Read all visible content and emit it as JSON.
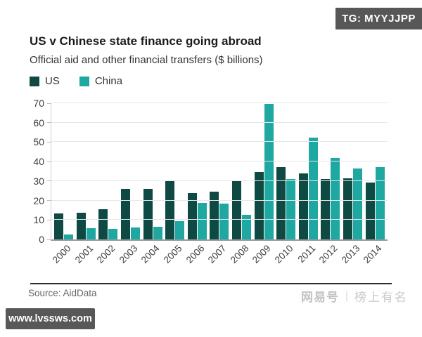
{
  "badges": {
    "tg": "TG: MYYJJPP",
    "site": "www.lvssws.com"
  },
  "watermark": {
    "brand": "网易号",
    "separator": "|",
    "tagline": "榜上有名"
  },
  "chart_data": {
    "type": "bar",
    "title": "US v Chinese state finance going abroad",
    "subtitle": "Official aid and other financial transfers ($ billions)",
    "source": "Source: AidData",
    "xlabel": "",
    "ylabel": "",
    "categories": [
      "2000",
      "2001",
      "2002",
      "2003",
      "2004",
      "2005",
      "2006",
      "2007",
      "2008",
      "2009",
      "2010",
      "2011",
      "2012",
      "2013",
      "2014"
    ],
    "series": [
      {
        "name": "US",
        "color": "#0f4944",
        "values": [
          13.4,
          13.7,
          15.5,
          25.9,
          26.1,
          30.4,
          23.7,
          24.4,
          30.1,
          34.6,
          37.3,
          34.1,
          31.1,
          31.5,
          29.4
        ]
      },
      {
        "name": "China",
        "color": "#1fa7a2",
        "values": [
          2.6,
          5.6,
          5.4,
          6.1,
          6.5,
          9.4,
          18.7,
          18.5,
          12.6,
          69.6,
          30.9,
          52.5,
          41.8,
          36.4,
          37.3
        ]
      }
    ],
    "ylim": [
      0,
      70
    ],
    "ytick_step": 10,
    "grid": true,
    "legend_position": "top-left"
  }
}
